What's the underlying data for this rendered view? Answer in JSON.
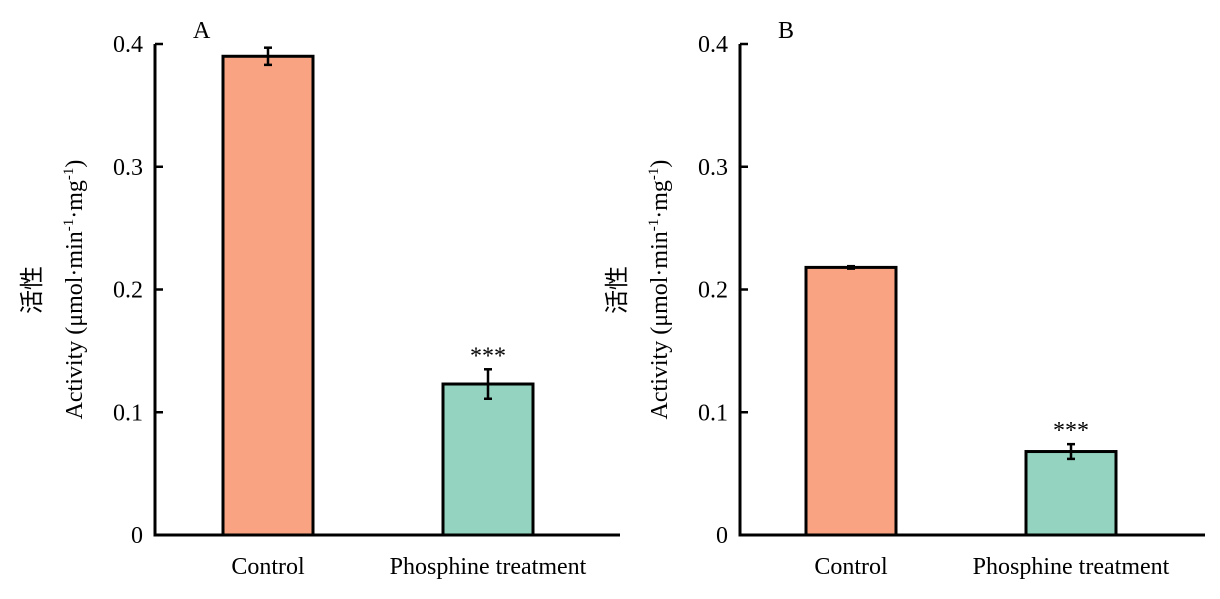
{
  "chart_data": [
    {
      "type": "bar",
      "panel_label": "A",
      "categories": [
        "Control",
        "Phosphine treatment"
      ],
      "values": [
        0.39,
        0.123
      ],
      "errors": [
        0.007,
        0.012
      ],
      "significance": [
        "",
        "***"
      ],
      "colors": [
        "#F9A383",
        "#93D3BF"
      ],
      "ylabel_cn": "活性",
      "ylabel": "Activity (μmol·min-1·mg-1)",
      "ylabel_parts": {
        "main": "Activity (μmol·min",
        "sup1": "-1",
        "mid": "·mg",
        "sup2": "-1",
        "end": ")"
      },
      "ylim": [
        0,
        0.4
      ],
      "yticks": [
        "0",
        "0.1",
        "0.2",
        "0.3",
        "0.4"
      ],
      "ytick_values": [
        0,
        0.1,
        0.2,
        0.3,
        0.4
      ]
    },
    {
      "type": "bar",
      "panel_label": "B",
      "categories": [
        "Control",
        "Phosphine treatment"
      ],
      "values": [
        0.218,
        0.068
      ],
      "errors": [
        0.001,
        0.006
      ],
      "significance": [
        "",
        "***"
      ],
      "colors": [
        "#F9A383",
        "#93D3BF"
      ],
      "ylabel_cn": "活性",
      "ylabel": "Activity (μmol·min-1·mg-1)",
      "ylabel_parts": {
        "main": "Activity (μmol·min",
        "sup1": "-1",
        "mid": "·mg",
        "sup2": "-1",
        "end": ")"
      },
      "ylim": [
        0,
        0.4
      ],
      "yticks": [
        "0",
        "0.1",
        "0.2",
        "0.3",
        "0.4"
      ],
      "ytick_values": [
        0,
        0.1,
        0.2,
        0.3,
        0.4
      ]
    }
  ]
}
